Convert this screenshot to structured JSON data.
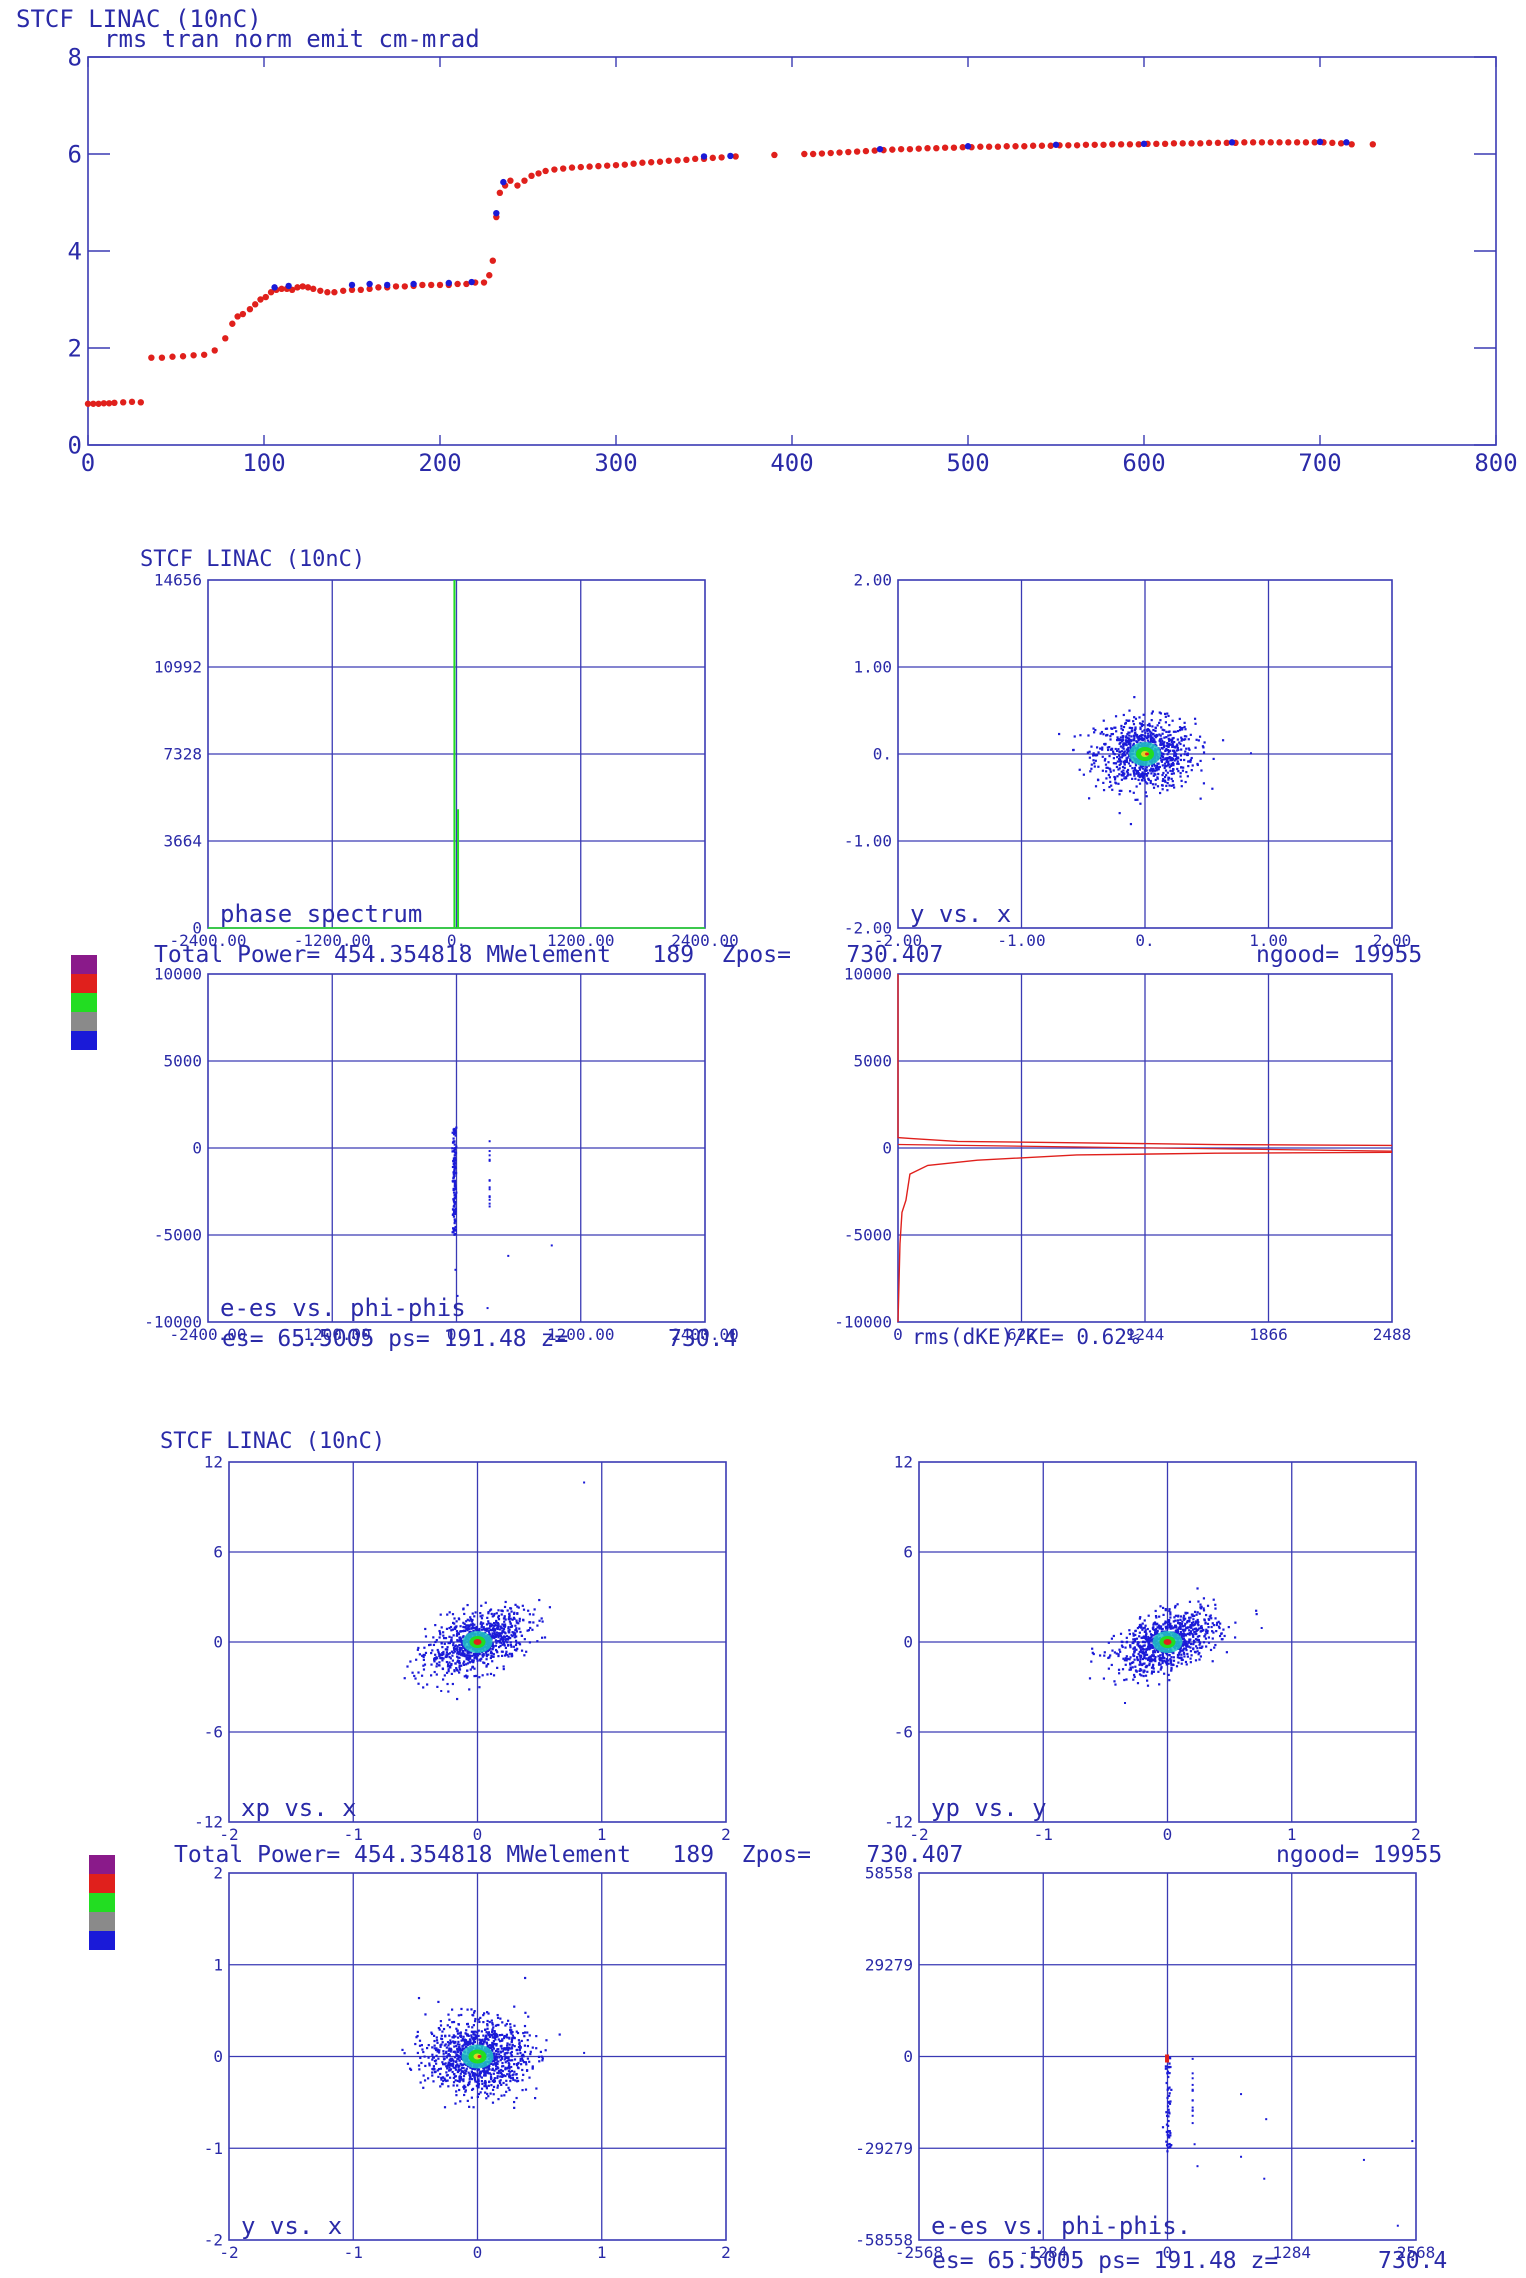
{
  "colors": {
    "frame": "#3a3ab4",
    "grid": "#3a3ab4",
    "text": "#2a2aa8",
    "red": "#e0201c",
    "blue": "#1a1ad8",
    "green": "#22dd22",
    "gray": "#8a8a8a",
    "purple": "#8a1a8a"
  },
  "section1": {
    "header": "STCF LINAC (10nC)",
    "subtitle": "rms tran norm emit cm-mrad"
  },
  "section2": {
    "header": "STCF LINAC (10nC)",
    "info_line": "Total Power= 454.354818 MWelement   189  Zpos=    730.407",
    "ngood": "ngood= 19955",
    "bottom_line_left": "es= 65.5005 ps= 191.48 z=",
    "bottom_line_right": "730.4",
    "rms_label": "rms(dKE)/KE= 0.62%"
  },
  "section3": {
    "header": "STCF LINAC (10nC)",
    "info_line": "Total Power= 454.354818 MWelement   189  Zpos=    730.407",
    "ngood": "ngood= 19955",
    "bottom_line_left": "es= 65.5005 ps= 191.48 z=",
    "bottom_line_right": "730.4"
  },
  "chart_data": [
    {
      "id": "emit",
      "type": "scatter",
      "xlim": [
        0,
        800
      ],
      "ylim": [
        0,
        8
      ],
      "xticks": [
        "0",
        "100",
        "200",
        "300",
        "400",
        "500",
        "600",
        "700",
        "800"
      ],
      "yticks": [
        "0",
        "2",
        "4",
        "6",
        "8"
      ],
      "series": [
        {
          "color": "red",
          "points": [
            [
              0,
              0.85
            ],
            [
              3,
              0.85
            ],
            [
              6,
              0.85
            ],
            [
              9,
              0.86
            ],
            [
              12,
              0.86
            ],
            [
              15,
              0.87
            ],
            [
              20,
              0.88
            ],
            [
              25,
              0.89
            ],
            [
              30,
              0.88
            ],
            [
              36,
              1.8
            ],
            [
              42,
              1.8
            ],
            [
              48,
              1.82
            ],
            [
              54,
              1.83
            ],
            [
              60,
              1.85
            ],
            [
              66,
              1.86
            ],
            [
              72,
              1.95
            ],
            [
              78,
              2.2
            ],
            [
              82,
              2.5
            ],
            [
              85,
              2.65
            ],
            [
              88,
              2.7
            ],
            [
              92,
              2.8
            ],
            [
              95,
              2.9
            ],
            [
              98,
              3.0
            ],
            [
              101,
              3.05
            ],
            [
              104,
              3.15
            ],
            [
              107,
              3.2
            ],
            [
              110,
              3.22
            ],
            [
              113,
              3.22
            ],
            [
              116,
              3.2
            ],
            [
              119,
              3.25
            ],
            [
              122,
              3.27
            ],
            [
              125,
              3.25
            ],
            [
              128,
              3.22
            ],
            [
              132,
              3.18
            ],
            [
              136,
              3.15
            ],
            [
              140,
              3.15
            ],
            [
              145,
              3.18
            ],
            [
              150,
              3.2
            ],
            [
              155,
              3.2
            ],
            [
              160,
              3.22
            ],
            [
              165,
              3.25
            ],
            [
              170,
              3.25
            ],
            [
              175,
              3.27
            ],
            [
              180,
              3.27
            ],
            [
              185,
              3.28
            ],
            [
              190,
              3.3
            ],
            [
              195,
              3.3
            ],
            [
              200,
              3.3
            ],
            [
              205,
              3.3
            ],
            [
              210,
              3.32
            ],
            [
              215,
              3.32
            ],
            [
              220,
              3.35
            ],
            [
              225,
              3.35
            ],
            [
              228,
              3.5
            ],
            [
              230,
              3.8
            ],
            [
              232,
              4.7
            ],
            [
              234,
              5.2
            ],
            [
              237,
              5.35
            ],
            [
              240,
              5.45
            ],
            [
              244,
              5.35
            ],
            [
              248,
              5.45
            ],
            [
              252,
              5.55
            ],
            [
              256,
              5.6
            ],
            [
              260,
              5.65
            ],
            [
              265,
              5.68
            ],
            [
              270,
              5.7
            ],
            [
              275,
              5.72
            ],
            [
              280,
              5.73
            ],
            [
              285,
              5.74
            ],
            [
              290,
              5.75
            ],
            [
              295,
              5.76
            ],
            [
              300,
              5.77
            ],
            [
              305,
              5.78
            ],
            [
              310,
              5.8
            ],
            [
              315,
              5.82
            ],
            [
              320,
              5.83
            ],
            [
              325,
              5.84
            ],
            [
              330,
              5.86
            ],
            [
              335,
              5.87
            ],
            [
              340,
              5.88
            ],
            [
              345,
              5.9
            ],
            [
              350,
              5.9
            ],
            [
              355,
              5.92
            ],
            [
              360,
              5.93
            ],
            [
              368,
              5.95
            ],
            [
              390,
              5.98
            ],
            [
              407,
              6.0
            ],
            [
              412,
              6.0
            ],
            [
              417,
              6.01
            ],
            [
              422,
              6.02
            ],
            [
              427,
              6.03
            ],
            [
              432,
              6.04
            ],
            [
              437,
              6.05
            ],
            [
              442,
              6.06
            ],
            [
              447,
              6.07
            ],
            [
              452,
              6.08
            ],
            [
              457,
              6.09
            ],
            [
              462,
              6.1
            ],
            [
              467,
              6.1
            ],
            [
              472,
              6.11
            ],
            [
              477,
              6.12
            ],
            [
              482,
              6.12
            ],
            [
              487,
              6.13
            ],
            [
              492,
              6.13
            ],
            [
              497,
              6.14
            ],
            [
              502,
              6.14
            ],
            [
              507,
              6.15
            ],
            [
              512,
              6.15
            ],
            [
              517,
              6.15
            ],
            [
              522,
              6.16
            ],
            [
              527,
              6.16
            ],
            [
              532,
              6.16
            ],
            [
              537,
              6.17
            ],
            [
              542,
              6.17
            ],
            [
              547,
              6.17
            ],
            [
              552,
              6.18
            ],
            [
              557,
              6.18
            ],
            [
              562,
              6.18
            ],
            [
              567,
              6.19
            ],
            [
              572,
              6.19
            ],
            [
              577,
              6.19
            ],
            [
              582,
              6.2
            ],
            [
              587,
              6.2
            ],
            [
              592,
              6.2
            ],
            [
              597,
              6.2
            ],
            [
              602,
              6.21
            ],
            [
              607,
              6.21
            ],
            [
              612,
              6.21
            ],
            [
              617,
              6.22
            ],
            [
              622,
              6.22
            ],
            [
              627,
              6.22
            ],
            [
              632,
              6.22
            ],
            [
              637,
              6.23
            ],
            [
              642,
              6.23
            ],
            [
              647,
              6.23
            ],
            [
              652,
              6.23
            ],
            [
              657,
              6.24
            ],
            [
              662,
              6.24
            ],
            [
              667,
              6.24
            ],
            [
              672,
              6.24
            ],
            [
              677,
              6.24
            ],
            [
              682,
              6.24
            ],
            [
              687,
              6.24
            ],
            [
              692,
              6.24
            ],
            [
              697,
              6.24
            ],
            [
              702,
              6.24
            ],
            [
              707,
              6.23
            ],
            [
              712,
              6.22
            ],
            [
              718,
              6.2
            ],
            [
              730,
              6.2
            ]
          ]
        },
        {
          "color": "blue",
          "points": [
            [
              106,
              3.25
            ],
            [
              114,
              3.28
            ],
            [
              150,
              3.3
            ],
            [
              160,
              3.32
            ],
            [
              170,
              3.3
            ],
            [
              185,
              3.32
            ],
            [
              205,
              3.34
            ],
            [
              218,
              3.36
            ],
            [
              232,
              4.78
            ],
            [
              236,
              5.42
            ],
            [
              350,
              5.95
            ],
            [
              365,
              5.96
            ],
            [
              450,
              6.1
            ],
            [
              500,
              6.16
            ],
            [
              550,
              6.19
            ],
            [
              600,
              6.21
            ],
            [
              650,
              6.24
            ],
            [
              700,
              6.25
            ],
            [
              715,
              6.24
            ]
          ]
        }
      ]
    },
    {
      "id": "phase_spectrum",
      "type": "line",
      "title": "phase spectrum",
      "xlim": [
        -2400,
        2400
      ],
      "ylim": [
        0,
        14656
      ],
      "xticks": [
        "-2400.00",
        "-1200.00",
        "0.",
        "1200.00",
        "2400.00"
      ],
      "yticks": [
        "0",
        "3664",
        "7328",
        "10992",
        "14656"
      ],
      "spikes": [
        [
          -30,
          14656
        ],
        [
          -10,
          14656
        ],
        [
          10,
          5000
        ],
        [
          25,
          0
        ]
      ]
    },
    {
      "id": "y_vs_x_top",
      "type": "scatter",
      "title": "y vs. x",
      "xlim": [
        -2,
        2
      ],
      "ylim": [
        -2,
        2
      ],
      "xticks": [
        "-2.00",
        "-1.00",
        "0.",
        "1.00",
        "2.00"
      ],
      "yticks": [
        "-2.00",
        "-1.00",
        "0.",
        "1.00",
        "2.00"
      ],
      "cloud": {
        "cx": 0,
        "cy": 0,
        "sx": 0.2,
        "sy": 0.2
      }
    },
    {
      "id": "e_es_vs_phi_top",
      "type": "scatter",
      "title": "e-es vs. phi-phis",
      "xlim": [
        -2400,
        2400
      ],
      "ylim": [
        -10000,
        10000
      ],
      "xticks": [
        "-2400.00",
        "-1200.00",
        "0.",
        "1200.00",
        "2400.00"
      ],
      "yticks": [
        "-10000",
        "-5000",
        "0",
        "5000",
        "10000"
      ]
    },
    {
      "id": "dke_profile",
      "type": "line",
      "xlim": [
        0,
        2488
      ],
      "ylim": [
        -10000,
        10000
      ],
      "xticks": [
        "0",
        "622",
        "1244",
        "1866",
        "2488"
      ],
      "yticks": [
        "-10000",
        "-5000",
        "0",
        "5000",
        "10000"
      ]
    },
    {
      "id": "xp_vs_x",
      "type": "scatter",
      "title": "xp vs. x",
      "xlim": [
        -2,
        2
      ],
      "ylim": [
        -12,
        12
      ],
      "xticks": [
        "-2",
        "-1",
        "0",
        "1",
        "2"
      ],
      "yticks": [
        "-12",
        "-6",
        "0",
        "6",
        "12"
      ],
      "cloud": {
        "cx": 0,
        "cy": 0,
        "sx": 0.18,
        "sy": 1.2
      }
    },
    {
      "id": "yp_vs_y",
      "type": "scatter",
      "title": "yp vs. y",
      "xlim": [
        -2,
        2
      ],
      "ylim": [
        -12,
        12
      ],
      "xticks": [
        "-2",
        "-1",
        "0",
        "1",
        "2"
      ],
      "yticks": [
        "-12",
        "-6",
        "0",
        "6",
        "12"
      ],
      "cloud": {
        "cx": 0,
        "cy": 0,
        "sx": 0.18,
        "sy": 1.2
      }
    },
    {
      "id": "y_vs_x_bottom",
      "type": "scatter",
      "title": "y vs. x",
      "xlim": [
        -2,
        2
      ],
      "ylim": [
        -2,
        2
      ],
      "xticks": [
        "-2",
        "-1",
        "0",
        "1",
        "2"
      ],
      "yticks": [
        "-2",
        "-1",
        "0",
        "1",
        "2"
      ],
      "cloud": {
        "cx": 0,
        "cy": 0,
        "sx": 0.2,
        "sy": 0.2
      }
    },
    {
      "id": "e_es_vs_phi_bottom",
      "type": "scatter",
      "title": "e-es vs. phi-phis.",
      "xlim": [
        -2568,
        2568
      ],
      "ylim": [
        -58558,
        58558
      ],
      "xticks": [
        "-2568",
        "-1284",
        "0",
        "1284",
        "2568"
      ],
      "yticks": [
        "-58558",
        "-29279",
        "0",
        "29279",
        "58558"
      ]
    }
  ]
}
